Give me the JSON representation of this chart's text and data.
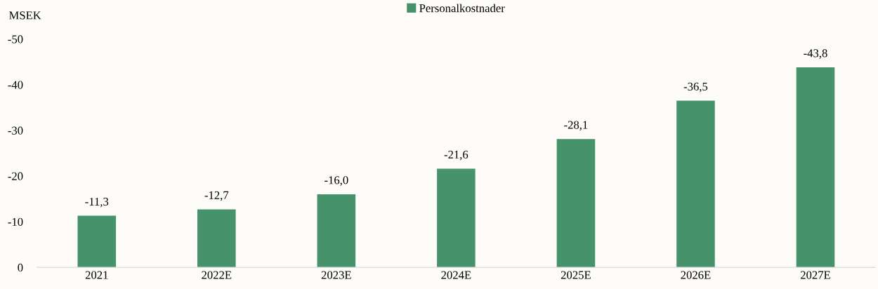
{
  "chart_data": {
    "type": "bar",
    "ylabel": "MSEK",
    "categories": [
      "2021",
      "2022E",
      "2023E",
      "2024E",
      "2025E",
      "2026E",
      "2027E"
    ],
    "series": [
      {
        "name": "Personalkostnader",
        "color": "#46926a",
        "values": [
          -11.3,
          -12.7,
          -16.0,
          -21.6,
          -28.1,
          -36.5,
          -43.8
        ],
        "value_labels": [
          "-11,3",
          "-12,7",
          "-16,0",
          "-21,6",
          "-28,1",
          "-36,5",
          "-43,8"
        ]
      }
    ],
    "ylim": [
      0,
      -50
    ],
    "yticks": [
      0,
      {
        "value": -10,
        "label": "-10"
      },
      {
        "value": -20,
        "label": "-20"
      },
      {
        "value": -30,
        "label": "-30"
      },
      {
        "value": -40,
        "label": "-40"
      },
      {
        "value": -50,
        "label": "-50"
      }
    ],
    "grid": false,
    "legend": "top"
  }
}
